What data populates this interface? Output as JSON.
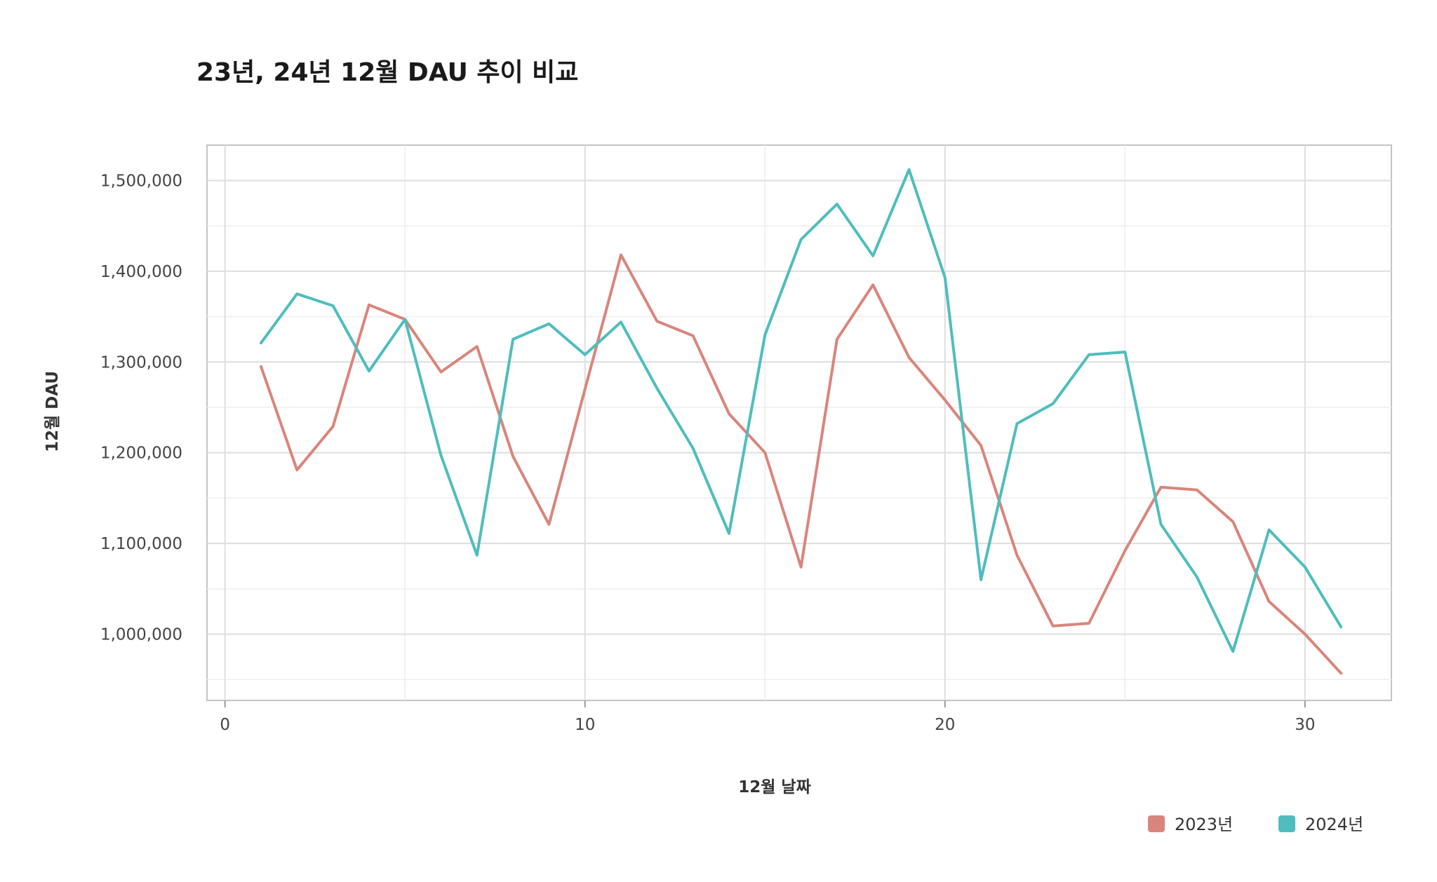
{
  "chart_data": {
    "type": "line",
    "title": "23년, 24년 12월 DAU 추이 비교",
    "xlabel": "12월 날짜",
    "ylabel": "12월 DAU",
    "xlim": [
      -0.5,
      32.4
    ],
    "ylim": [
      927000,
      1539000
    ],
    "x_ticks": [
      0,
      10,
      20,
      30
    ],
    "y_ticks": [
      1000000,
      1100000,
      1200000,
      1300000,
      1400000,
      1500000
    ],
    "y_tick_labels": [
      "1,000,000",
      "1,100,000",
      "1,200,000",
      "1,300,000",
      "1,400,000",
      "1,500,000"
    ],
    "grid": true,
    "legend_position": "bottom-right",
    "x": [
      1,
      2,
      3,
      4,
      5,
      6,
      7,
      8,
      9,
      10,
      11,
      12,
      13,
      14,
      15,
      16,
      17,
      18,
      19,
      20,
      21,
      22,
      23,
      24,
      25,
      26,
      27,
      28,
      29,
      30,
      31
    ],
    "series": [
      {
        "name": "2023년",
        "color": "#d9857b",
        "values": [
          1295000,
          1181000,
          1229000,
          1363000,
          1347000,
          1289000,
          1317000,
          1196000,
          1121000,
          1270000,
          1418000,
          1345000,
          1329000,
          1243000,
          1200000,
          1074000,
          1325000,
          1385000,
          1305000,
          1258000,
          1208000,
          1087000,
          1009000,
          1012000,
          1092000,
          1162000,
          1159000,
          1124000,
          1036000,
          1000000,
          957000
        ]
      },
      {
        "name": "2024년",
        "color": "#4fbdbd",
        "values": [
          1321000,
          1375000,
          1362000,
          1290000,
          1347000,
          1197000,
          1087000,
          1325000,
          1342000,
          1308000,
          1344000,
          1271000,
          1205000,
          1111000,
          1330000,
          1435000,
          1474000,
          1417000,
          1512000,
          1393000,
          1060000,
          1232000,
          1254000,
          1308000,
          1311000,
          1121000,
          1063000,
          981000,
          1115000,
          1074000,
          1008000
        ]
      }
    ]
  }
}
